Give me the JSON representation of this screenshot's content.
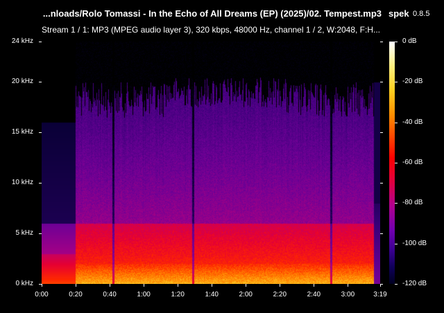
{
  "window": {
    "title": "...nloads/Rolo Tomassi - In the Echo of All Dreams (EP) (2025)/02. Tempest.mp3",
    "app_name": "spek",
    "app_version": "0.8.5",
    "stream_info": "Stream 1 / 1: MP3 (MPEG audio layer 3), 320 kbps, 48000 Hz, channel 1 / 2, W:2048, F:H..."
  },
  "frequency_axis": {
    "unit": "kHz",
    "ticks": [
      "24 kHz",
      "20 kHz",
      "15 kHz",
      "10 kHz",
      "5 kHz",
      "0 kHz"
    ],
    "values": [
      24,
      20,
      15,
      10,
      5,
      0
    ],
    "range": [
      0,
      24
    ]
  },
  "time_axis": {
    "ticks": [
      "0:00",
      "0:20",
      "0:40",
      "1:00",
      "1:20",
      "1:40",
      "2:00",
      "2:20",
      "2:40",
      "3:00",
      "3:19"
    ],
    "values_seconds": [
      0,
      20,
      40,
      60,
      80,
      100,
      120,
      140,
      160,
      180,
      199
    ],
    "range_seconds": [
      0,
      199
    ]
  },
  "level_scale": {
    "ticks": [
      "0 dB",
      "-20 dB",
      "-40 dB",
      "-60 dB",
      "-80 dB",
      "-100 dB",
      "-120 dB"
    ],
    "values": [
      0,
      -20,
      -40,
      -60,
      -80,
      -100,
      -120
    ],
    "range": [
      -120,
      0
    ]
  },
  "colors": {
    "background": "#000000",
    "text": "#ffffff"
  }
}
